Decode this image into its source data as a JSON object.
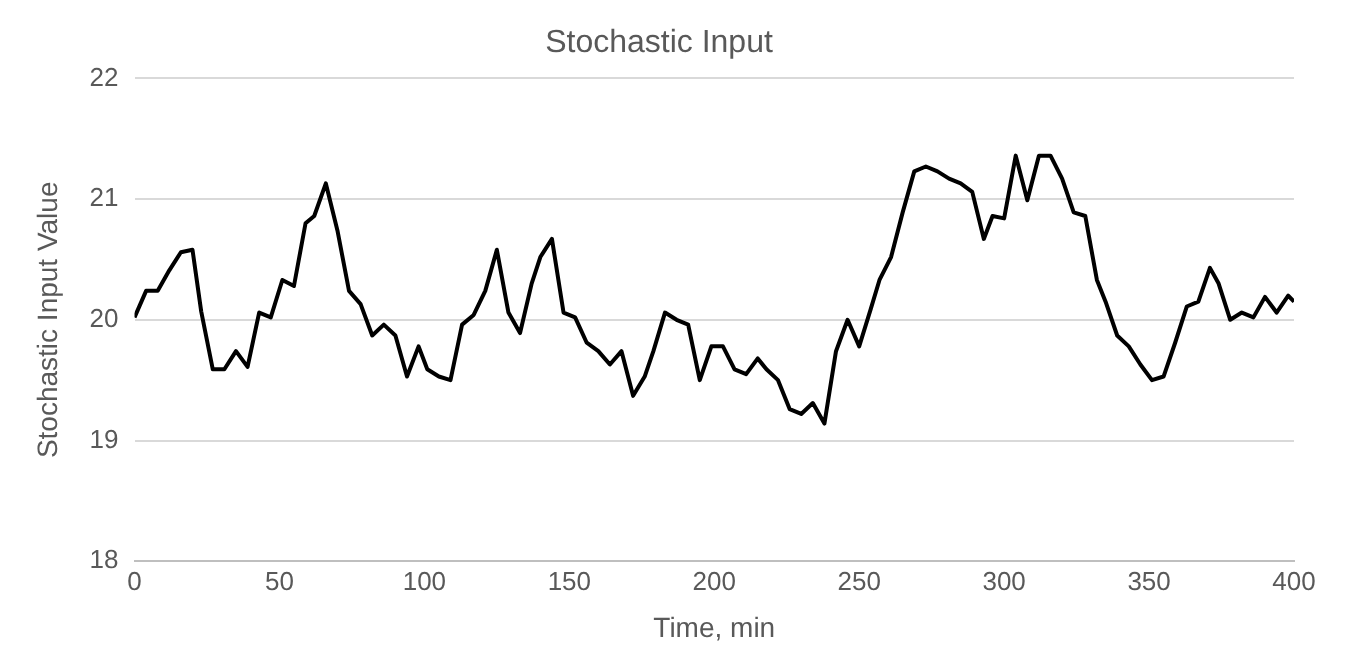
{
  "chart_data": {
    "type": "line",
    "title": "Stochastic Input",
    "xlabel": "Time, min",
    "ylabel": "Stochastic Input Value",
    "x": [
      0,
      4,
      8,
      12,
      16,
      20,
      23,
      27,
      31,
      35,
      39,
      43,
      47,
      51,
      55,
      59,
      62,
      66,
      70,
      74,
      78,
      82,
      86,
      90,
      94,
      98,
      101,
      105,
      109,
      113,
      117,
      121,
      125,
      129,
      133,
      137,
      140,
      144,
      148,
      152,
      156,
      160,
      164,
      168,
      172,
      176,
      179,
      183,
      187,
      191,
      195,
      199,
      203,
      207,
      211,
      215,
      218,
      222,
      226,
      230,
      234,
      238,
      242,
      246,
      250,
      254,
      257,
      261,
      265,
      269,
      273,
      277,
      281,
      285,
      289,
      293,
      296,
      300,
      304,
      308,
      312,
      316,
      320,
      324,
      328,
      332,
      335,
      339,
      343,
      347,
      351,
      355,
      359,
      363,
      367,
      371,
      374,
      378,
      382,
      386,
      390,
      394,
      398,
      400
    ],
    "series": [
      {
        "color": "#000000",
        "values": [
          20.02,
          20.24,
          20.24,
          20.41,
          20.56,
          20.58,
          20.07,
          19.59,
          19.59,
          19.74,
          19.61,
          20.06,
          20.02,
          20.33,
          20.28,
          20.8,
          20.86,
          21.13,
          20.74,
          20.24,
          20.13,
          19.87,
          19.96,
          19.87,
          19.53,
          19.78,
          19.59,
          19.53,
          19.5,
          19.96,
          20.04,
          20.24,
          20.58,
          20.06,
          19.89,
          20.3,
          20.52,
          20.67,
          20.06,
          20.02,
          19.81,
          19.74,
          19.63,
          19.74,
          19.37,
          19.53,
          19.74,
          20.06,
          20.0,
          19.96,
          19.5,
          19.78,
          19.78,
          19.59,
          19.55,
          19.68,
          19.59,
          19.5,
          19.26,
          19.22,
          19.31,
          19.14,
          19.74,
          20.0,
          19.78,
          20.09,
          20.33,
          20.52,
          20.89,
          21.23,
          21.27,
          21.23,
          21.17,
          21.13,
          21.06,
          20.67,
          20.86,
          20.84,
          21.36,
          20.99,
          21.36,
          21.36,
          21.17,
          20.89,
          20.86,
          20.33,
          20.15,
          19.87,
          19.78,
          19.63,
          19.5,
          19.53,
          19.81,
          20.11,
          20.15,
          20.43,
          20.3,
          20.0,
          20.06,
          20.02,
          20.19,
          20.06,
          20.2,
          20.15
        ]
      }
    ],
    "xlim": [
      0,
      400
    ],
    "xticks": [
      0,
      50,
      100,
      150,
      200,
      250,
      300,
      350,
      400
    ],
    "ylim": [
      18,
      22
    ],
    "yticks": [
      18,
      19,
      20,
      21,
      22
    ],
    "grid": "y",
    "legend": false,
    "marker": "none",
    "line_style": "solid"
  }
}
